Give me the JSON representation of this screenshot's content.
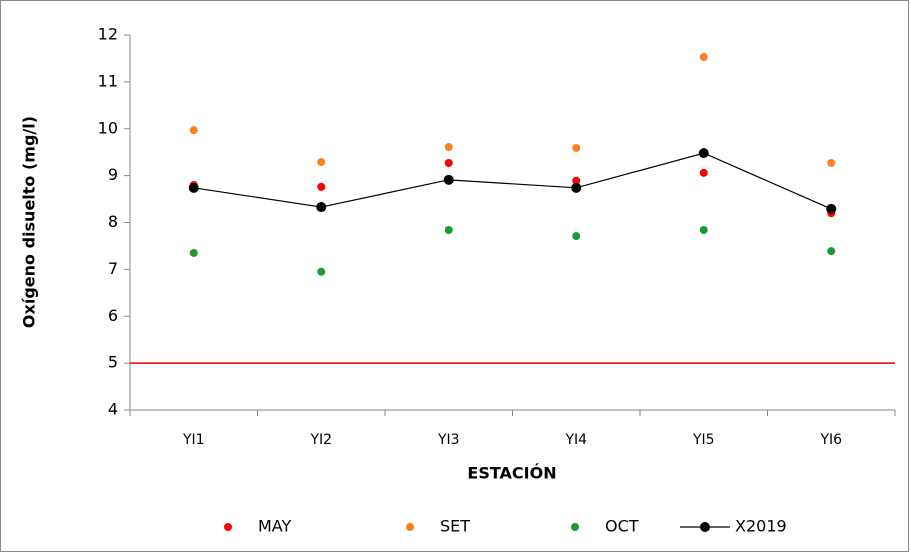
{
  "chart_data": {
    "type": "line",
    "x_label": "ESTACIÓN",
    "y_label": "Oxígeno disuelto (mg/l)",
    "categories": [
      "YI1",
      "YI2",
      "YI3",
      "YI4",
      "YI5",
      "YI6"
    ],
    "series": [
      {
        "name": "MAY",
        "color": "#ff0000",
        "style": "markers",
        "values": [
          8.8,
          8.76,
          9.27,
          8.89,
          9.06,
          8.2
        ]
      },
      {
        "name": "SET",
        "color": "#ff7f1e",
        "style": "markers",
        "values": [
          9.97,
          9.29,
          9.61,
          9.59,
          11.53,
          9.27
        ]
      },
      {
        "name": "OCT",
        "color": "#1a9a32",
        "style": "markers",
        "values": [
          7.35,
          6.95,
          7.84,
          7.71,
          7.84,
          7.39
        ]
      },
      {
        "name": "X2019",
        "color": "#000000",
        "style": "lines+markers",
        "values": [
          8.74,
          8.33,
          8.91,
          8.74,
          9.48,
          8.29
        ]
      }
    ],
    "reference_line": {
      "value": 5,
      "color": "#e00000"
    },
    "ylim": [
      4,
      12
    ],
    "yticks": [
      4,
      5,
      6,
      7,
      8,
      9,
      10,
      11,
      12
    ],
    "legend": "bottom"
  }
}
